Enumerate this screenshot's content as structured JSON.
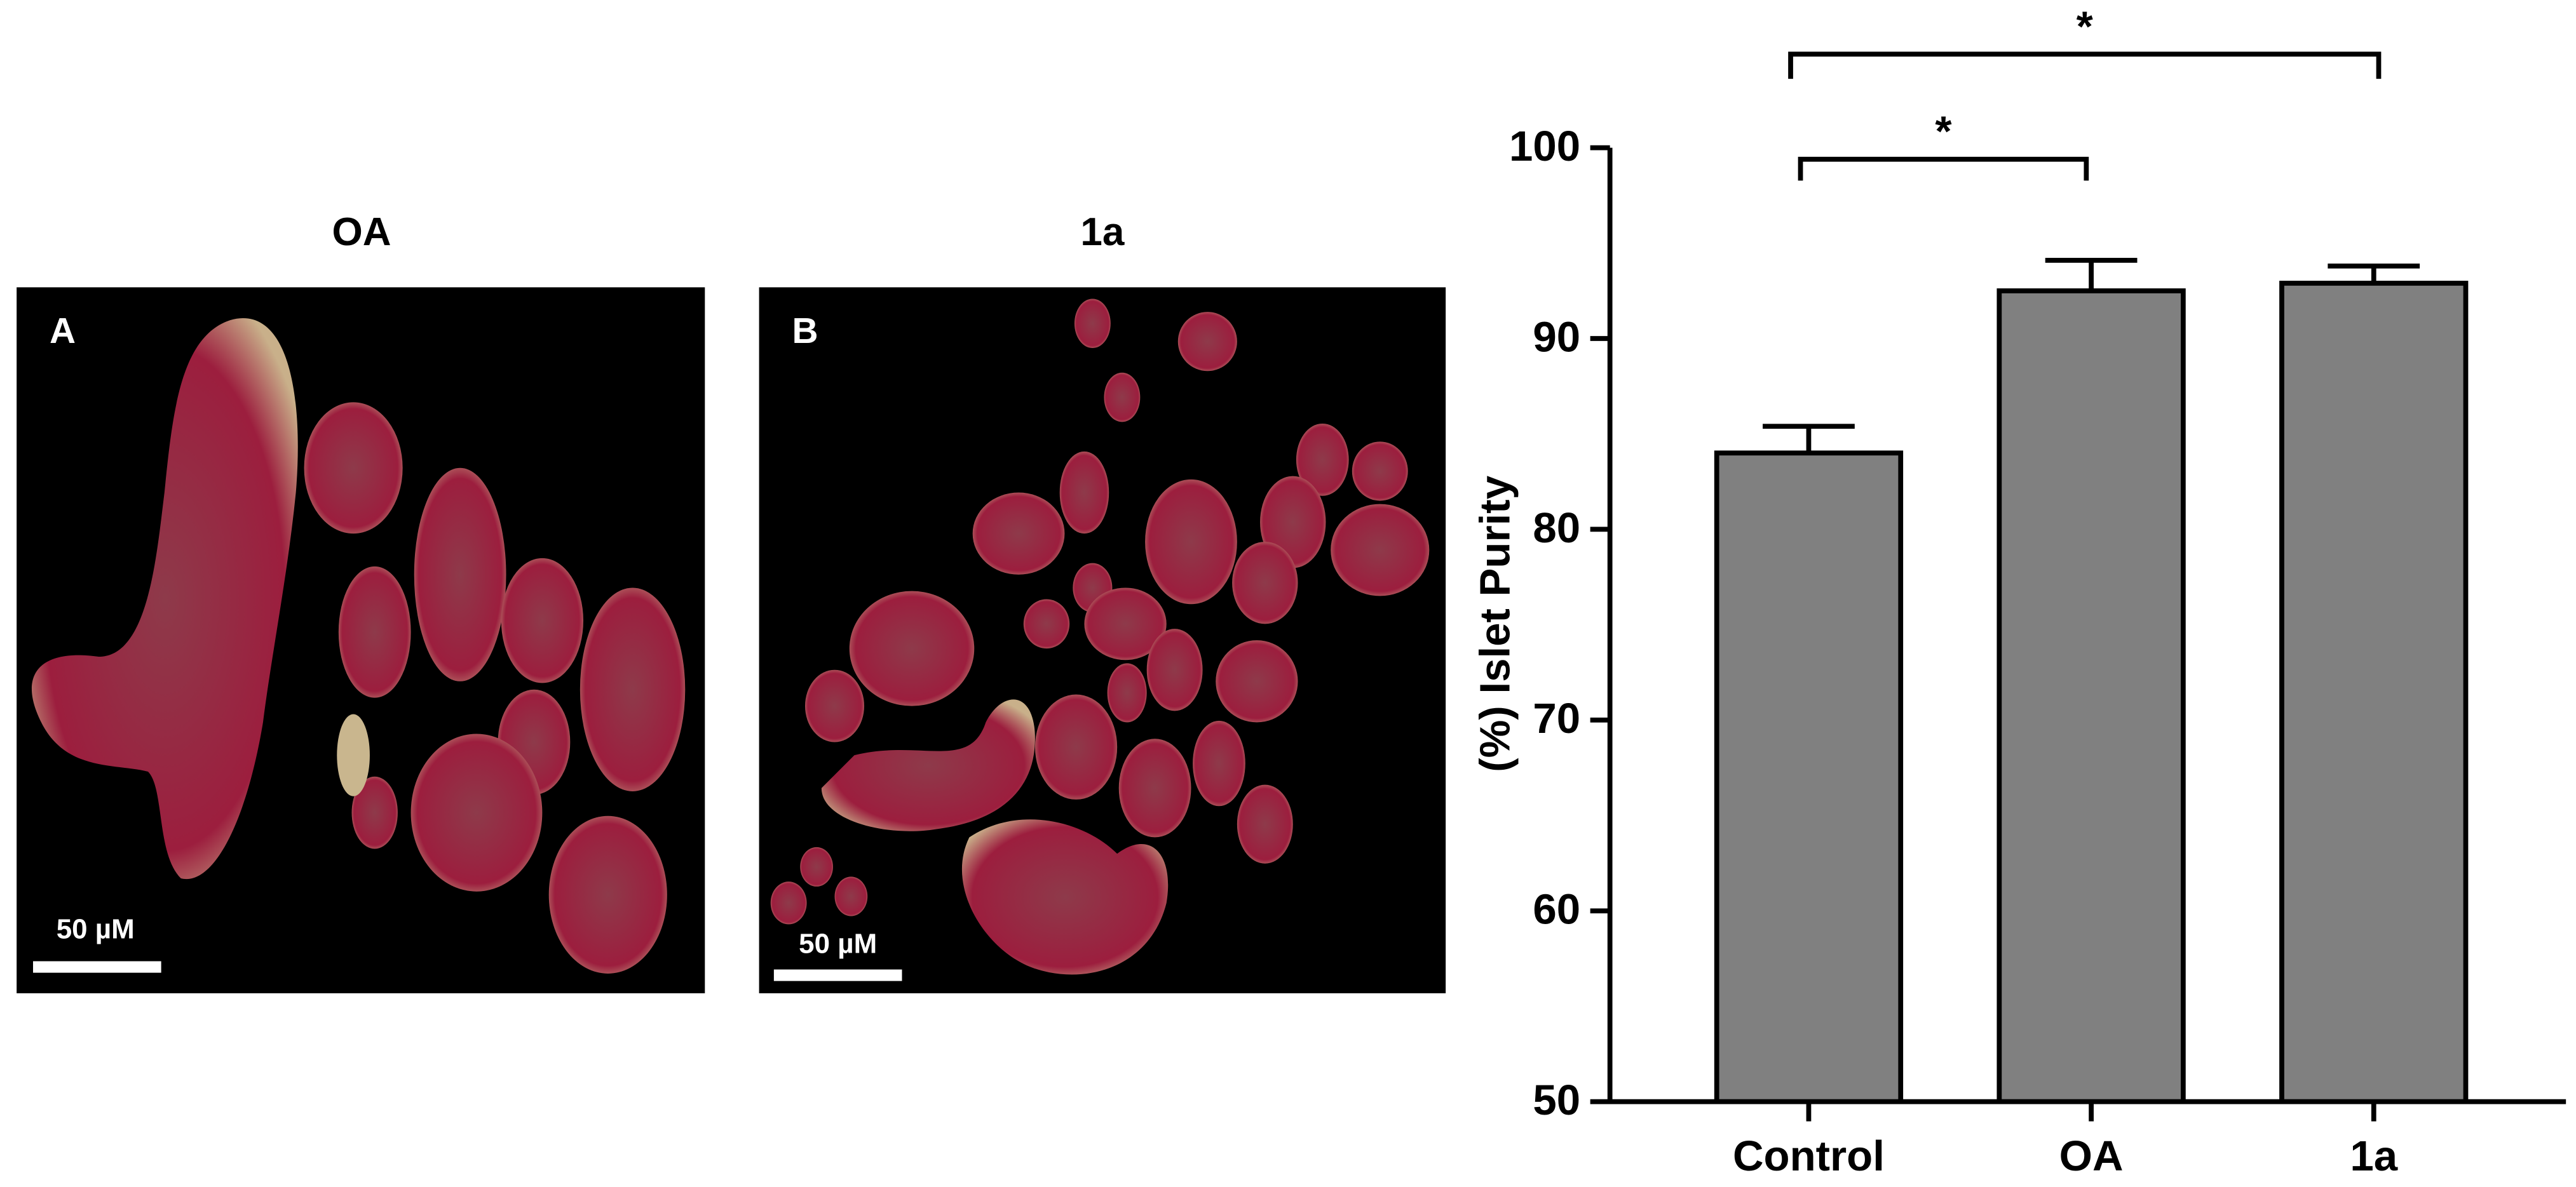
{
  "panels": [
    {
      "title": "OA",
      "label": "A",
      "scale_bar": "50 µM"
    },
    {
      "title": "1a",
      "label": "B",
      "scale_bar": "50 µM"
    }
  ],
  "chart_data": {
    "type": "bar",
    "ylabel": "(%) Islet Purity",
    "categories": [
      "Control",
      "OA",
      "1a"
    ],
    "values": [
      84,
      92.5,
      92.9
    ],
    "errors": [
      1.4,
      1.6,
      0.9
    ],
    "color": "#808080",
    "ylim": [
      50,
      100
    ],
    "yticks": [
      50,
      60,
      70,
      80,
      90,
      100
    ],
    "significance": [
      {
        "label": "*",
        "between": [
          "Control",
          "OA"
        ]
      },
      {
        "label": "*",
        "between": [
          "Control",
          "1a"
        ]
      }
    ]
  }
}
